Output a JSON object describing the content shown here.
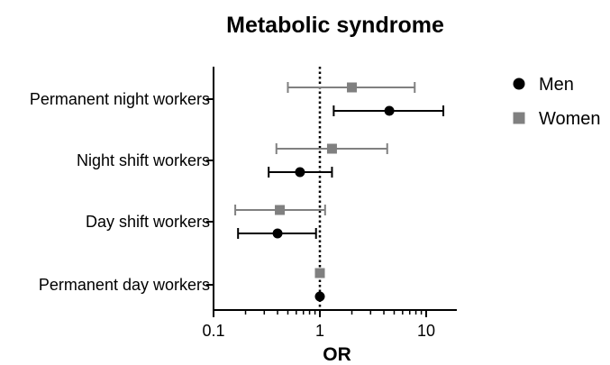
{
  "chart_data": {
    "type": "scatter",
    "title": "Metabolic syndrome",
    "xlabel": "OR",
    "ylabel": "",
    "x_scale": "log",
    "xlim": [
      0.1,
      20
    ],
    "x_ticks": [
      {
        "value": 0.1,
        "label": "0.1"
      },
      {
        "value": 1,
        "label": "1"
      },
      {
        "value": 10,
        "label": "10"
      }
    ],
    "reference_line": 1,
    "categories": [
      "Permanent night workers",
      "Night shift workers",
      "Day shift workers",
      "Permanent day workers"
    ],
    "legend_position": "top-right",
    "series": [
      {
        "name": "Men",
        "marker": "circle",
        "color": "#000000",
        "points": [
          {
            "category": "Permanent night workers",
            "or": 4.5,
            "ci_low": 1.35,
            "ci_high": 14.5
          },
          {
            "category": "Night shift workers",
            "or": 0.65,
            "ci_low": 0.33,
            "ci_high": 1.3
          },
          {
            "category": "Day shift workers",
            "or": 0.4,
            "ci_low": 0.17,
            "ci_high": 0.92
          },
          {
            "category": "Permanent day workers",
            "or": 1,
            "ci_low": null,
            "ci_high": null
          }
        ]
      },
      {
        "name": "Women",
        "marker": "square",
        "color": "#808080",
        "points": [
          {
            "category": "Permanent night workers",
            "or": 2.0,
            "ci_low": 0.5,
            "ci_high": 7.8
          },
          {
            "category": "Night shift workers",
            "or": 1.3,
            "ci_low": 0.39,
            "ci_high": 4.3
          },
          {
            "category": "Day shift workers",
            "or": 0.42,
            "ci_low": 0.16,
            "ci_high": 1.12
          },
          {
            "category": "Permanent day workers",
            "or": 1,
            "ci_low": null,
            "ci_high": null
          }
        ]
      }
    ]
  }
}
